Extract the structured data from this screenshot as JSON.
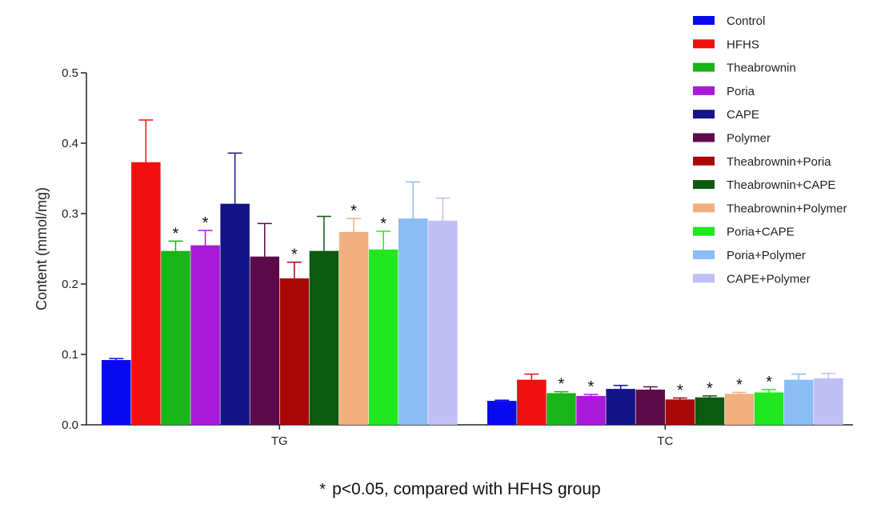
{
  "chart_data": {
    "type": "bar",
    "title": "",
    "xlabel": "",
    "ylabel": "Content (mmol/mg)",
    "ylim": [
      0,
      0.5
    ],
    "yticks": [
      "0.0",
      "0.1",
      "0.2",
      "0.3",
      "0.4",
      "0.5"
    ],
    "categories": [
      "TG",
      "TC"
    ],
    "legend_position": "top-right",
    "significance_marker": "*",
    "series": [
      {
        "name": "Control",
        "color": "#0a0af0",
        "values": [
          0.092,
          0.034
        ],
        "errors": [
          0.002,
          0.001
        ],
        "significant": [
          false,
          false
        ]
      },
      {
        "name": "HFHS",
        "color": "#f01010",
        "values": [
          0.373,
          0.064
        ],
        "errors": [
          0.06,
          0.008
        ],
        "significant": [
          false,
          false
        ]
      },
      {
        "name": "Theabrownin",
        "color": "#18b418",
        "values": [
          0.247,
          0.045
        ],
        "errors": [
          0.014,
          0.002
        ],
        "significant": [
          true,
          true
        ]
      },
      {
        "name": "Poria",
        "color": "#a81ad8",
        "values": [
          0.255,
          0.041
        ],
        "errors": [
          0.021,
          0.002
        ],
        "significant": [
          true,
          true
        ]
      },
      {
        "name": "CAPE",
        "color": "#141488",
        "values": [
          0.314,
          0.051
        ],
        "errors": [
          0.072,
          0.005
        ],
        "significant": [
          false,
          false
        ]
      },
      {
        "name": "Polymer",
        "color": "#5c0a4a",
        "values": [
          0.239,
          0.05
        ],
        "errors": [
          0.047,
          0.004
        ],
        "significant": [
          false,
          false
        ]
      },
      {
        "name": "Theabrownin+Poria",
        "color": "#a80808",
        "values": [
          0.208,
          0.036
        ],
        "errors": [
          0.023,
          0.002
        ],
        "significant": [
          true,
          true
        ]
      },
      {
        "name": "Theabrownin+CAPE",
        "color": "#0c5a10",
        "values": [
          0.247,
          0.039
        ],
        "errors": [
          0.049,
          0.002
        ],
        "significant": [
          false,
          true
        ]
      },
      {
        "name": "Theabrownin+Polymer",
        "color": "#f2b080",
        "values": [
          0.274,
          0.044
        ],
        "errors": [
          0.019,
          0.002
        ],
        "significant": [
          true,
          true
        ]
      },
      {
        "name": "Poria+CAPE",
        "color": "#20e820",
        "values": [
          0.249,
          0.046
        ],
        "errors": [
          0.026,
          0.004
        ],
        "significant": [
          true,
          true
        ]
      },
      {
        "name": "Poria+Polymer",
        "color": "#8cbcf4",
        "values": [
          0.293,
          0.064
        ],
        "errors": [
          0.052,
          0.008
        ],
        "significant": [
          false,
          false
        ]
      },
      {
        "name": "CAPE+Polymer",
        "color": "#c0c0f4",
        "values": [
          0.29,
          0.066
        ],
        "errors": [
          0.032,
          0.007
        ],
        "significant": [
          false,
          false
        ]
      }
    ],
    "footnote_star": "*",
    "footnote": "p<0.05, compared with HFHS group"
  }
}
